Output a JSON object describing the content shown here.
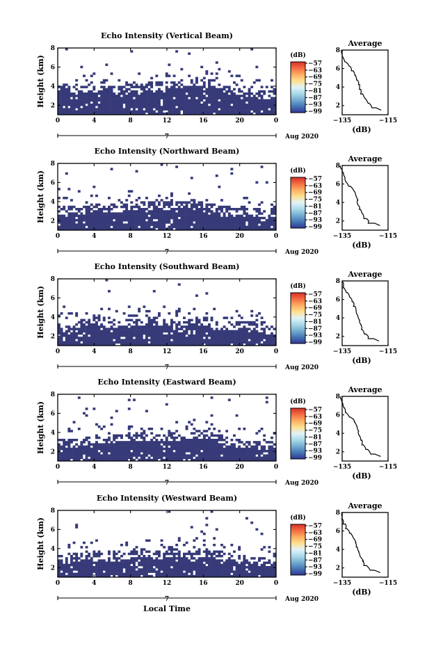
{
  "figure": {
    "xlabel": "Local Time",
    "date_label": "Aug 2020",
    "colorbar_unit": "(dB)",
    "colorbar_ticks": [
      "−57",
      "−63",
      "−69",
      "−75",
      "−81",
      "−87",
      "−93",
      "−99"
    ],
    "colorbar_colors": [
      "#313695",
      "#4575b4",
      "#74add1",
      "#abd9e9",
      "#e0f3f8",
      "#fee090",
      "#fdae61",
      "#f46d43",
      "#d73027"
    ],
    "cell_color": "#363a78",
    "profile_title": "Average",
    "profile_xlabel": "(dB)",
    "profile_xticks": [
      "−135",
      "−115"
    ]
  },
  "chart_data": [
    {
      "type": "heatmap",
      "title": "Echo Intensity (Vertical Beam)",
      "xlabel": "Local Time",
      "ylabel": "Height (km)",
      "xlim": [
        0,
        24
      ],
      "ylim": [
        1,
        8
      ],
      "xticks": [
        "0",
        "4",
        "8",
        "12",
        "16",
        "20",
        "0"
      ],
      "yticks": [
        "2",
        "4",
        "6",
        "8"
      ],
      "date_ticks": [
        "7"
      ],
      "colorbar": {
        "unit": "dB",
        "range": [
          -99,
          -57
        ]
      },
      "echo_top_km": [
        3.9,
        3.9,
        3.6,
        3.7,
        3.8,
        4.0,
        3.9,
        3.8,
        3.9,
        3.8,
        4.0,
        4.1,
        4.1,
        4.2,
        4.4,
        4.4,
        4.5,
        4.3,
        4.0,
        3.6,
        3.6,
        3.3,
        3.0,
        3.1,
        3.2
      ],
      "profile": {
        "title": "Average",
        "xlabel": "(dB)",
        "xlim": [
          -135,
          -115
        ],
        "ylim": [
          1,
          8
        ],
        "height_km": [
          8.0,
          7.5,
          7.0,
          6.5,
          6.0,
          5.5,
          5.0,
          4.5,
          4.0,
          3.5,
          3.0,
          2.5,
          2.0,
          1.5
        ],
        "value_db": [
          -135.5,
          -135.0,
          -134.2,
          -132.5,
          -131.0,
          -129.6,
          -128.8,
          -127.8,
          -127.4,
          -126.7,
          -125.6,
          -124.2,
          -122.4,
          -118.0
        ]
      }
    },
    {
      "type": "heatmap",
      "title": "Echo Intensity (Northward Beam)",
      "xlabel": "Local Time",
      "ylabel": "Height (km)",
      "xlim": [
        0,
        24
      ],
      "ylim": [
        1,
        8
      ],
      "xticks": [
        "0",
        "4",
        "8",
        "12",
        "16",
        "20",
        "0"
      ],
      "yticks": [
        "2",
        "4",
        "6",
        "8"
      ],
      "date_ticks": [
        "7"
      ],
      "colorbar": {
        "unit": "dB",
        "range": [
          -99,
          -57
        ]
      },
      "echo_top_km": [
        3.2,
        3.1,
        3.0,
        3.2,
        3.3,
        3.2,
        3.3,
        3.4,
        3.5,
        3.5,
        3.6,
        3.7,
        3.6,
        3.7,
        3.8,
        3.8,
        3.8,
        3.6,
        3.1,
        3.0,
        3.1,
        3.1,
        2.8,
        2.7,
        2.8
      ],
      "profile": {
        "title": "Average",
        "xlabel": "(dB)",
        "xlim": [
          -135,
          -115
        ],
        "ylim": [
          1,
          8
        ],
        "height_km": [
          8.0,
          7.5,
          7.0,
          6.5,
          6.0,
          5.5,
          5.0,
          4.5,
          4.0,
          3.5,
          3.0,
          2.5,
          2.0,
          1.5
        ],
        "value_db": [
          -135.8,
          -135.0,
          -134.4,
          -133.8,
          -132.6,
          -130.4,
          -129.2,
          -128.6,
          -128.5,
          -127.4,
          -126.6,
          -125.6,
          -123.4,
          -118.5
        ]
      }
    },
    {
      "type": "heatmap",
      "title": "Echo Intensity (Southward Beam)",
      "xlabel": "Local Time",
      "ylabel": "Height (km)",
      "xlim": [
        0,
        24
      ],
      "ylim": [
        1,
        8
      ],
      "xticks": [
        "0",
        "4",
        "8",
        "12",
        "16",
        "20",
        "0"
      ],
      "yticks": [
        "2",
        "4",
        "6",
        "8"
      ],
      "date_ticks": [
        "7"
      ],
      "colorbar": {
        "unit": "dB",
        "range": [
          -99,
          -57
        ]
      },
      "echo_top_km": [
        3.0,
        2.9,
        3.0,
        3.5,
        3.8,
        3.4,
        3.2,
        3.3,
        3.4,
        3.6,
        3.7,
        3.6,
        3.5,
        3.3,
        3.6,
        3.8,
        3.6,
        3.2,
        3.0,
        3.1,
        3.2,
        3.2,
        3.0,
        2.6,
        2.7
      ],
      "profile": {
        "title": "Average",
        "xlabel": "(dB)",
        "xlim": [
          -135,
          -115
        ],
        "ylim": [
          1,
          8
        ],
        "height_km": [
          8.0,
          7.5,
          7.0,
          6.5,
          6.0,
          5.5,
          5.0,
          4.5,
          4.0,
          3.5,
          3.0,
          2.5,
          2.0,
          1.5
        ],
        "value_db": [
          -135.0,
          -134.4,
          -133.6,
          -132.0,
          -130.8,
          -129.8,
          -129.0,
          -128.8,
          -128.0,
          -127.4,
          -126.4,
          -125.6,
          -123.6,
          -119.0
        ]
      }
    },
    {
      "type": "heatmap",
      "title": "Echo Intensity (Eastward Beam)",
      "xlabel": "Local Time",
      "ylabel": "Height (km)",
      "xlim": [
        0,
        24
      ],
      "ylim": [
        1,
        8
      ],
      "xticks": [
        "0",
        "4",
        "8",
        "12",
        "16",
        "20",
        "0"
      ],
      "yticks": [
        "2",
        "4",
        "6",
        "8"
      ],
      "date_ticks": [
        "7"
      ],
      "colorbar": {
        "unit": "dB",
        "range": [
          -99,
          -57
        ]
      },
      "echo_top_km": [
        2.9,
        2.8,
        2.9,
        3.1,
        3.3,
        3.2,
        3.3,
        3.5,
        3.6,
        3.6,
        3.5,
        3.4,
        3.5,
        3.6,
        3.7,
        3.7,
        3.8,
        3.7,
        3.3,
        2.9,
        2.9,
        2.8,
        2.7,
        2.7,
        2.6
      ],
      "profile": {
        "title": "Average",
        "xlabel": "(dB)",
        "xlim": [
          -135,
          -115
        ],
        "ylim": [
          1,
          8
        ],
        "height_km": [
          8.0,
          7.5,
          7.0,
          6.5,
          6.0,
          5.5,
          5.0,
          4.5,
          4.0,
          3.5,
          3.0,
          2.5,
          2.0,
          1.5
        ],
        "value_db": [
          -135.6,
          -135.2,
          -134.6,
          -133.6,
          -132.4,
          -130.0,
          -129.0,
          -128.4,
          -128.0,
          -127.0,
          -126.2,
          -125.0,
          -123.0,
          -118.2
        ]
      }
    },
    {
      "type": "heatmap",
      "title": "Echo Intensity (Westward Beam)",
      "xlabel": "Local Time",
      "ylabel": "Height (km)",
      "xlim": [
        0,
        24
      ],
      "ylim": [
        1,
        8
      ],
      "xticks": [
        "0",
        "4",
        "8",
        "12",
        "16",
        "20",
        "0"
      ],
      "yticks": [
        "2",
        "4",
        "6",
        "8"
      ],
      "date_ticks": [
        "7"
      ],
      "colorbar": {
        "unit": "dB",
        "range": [
          -99,
          -57
        ]
      },
      "echo_top_km": [
        3.0,
        2.9,
        3.1,
        3.3,
        3.4,
        3.2,
        3.1,
        3.3,
        3.5,
        3.6,
        3.4,
        3.3,
        3.5,
        3.6,
        3.4,
        3.3,
        3.5,
        3.6,
        3.2,
        3.0,
        2.9,
        2.7,
        2.6,
        2.6,
        2.7
      ],
      "profile": {
        "title": "Average",
        "xlabel": "(dB)",
        "xlim": [
          -135,
          -115
        ],
        "ylim": [
          1,
          8
        ],
        "height_km": [
          8.0,
          7.5,
          7.0,
          6.5,
          6.0,
          5.5,
          5.0,
          4.5,
          4.0,
          3.5,
          3.0,
          2.5,
          2.0,
          1.5
        ],
        "value_db": [
          -135.4,
          -135.0,
          -134.4,
          -133.2,
          -132.0,
          -130.6,
          -129.4,
          -128.8,
          -128.2,
          -127.4,
          -126.4,
          -125.4,
          -123.4,
          -118.4
        ]
      }
    }
  ]
}
